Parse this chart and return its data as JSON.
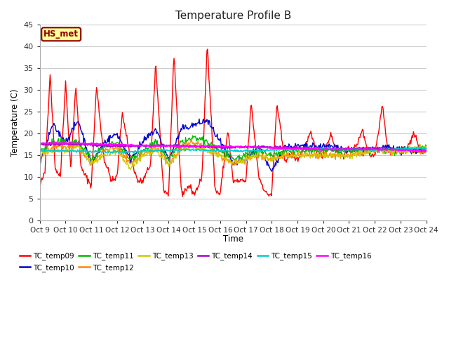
{
  "title": "Temperature Profile B",
  "xlabel": "Time",
  "ylabel": "Temperature (C)",
  "ylim": [
    0,
    45
  ],
  "xlim": [
    0,
    15
  ],
  "fig_bg": "#ffffff",
  "plot_bg": "#ffffff",
  "grid_color": "#dddddd",
  "annotation_text": "HS_met",
  "annotation_bg": "#ffff99",
  "annotation_border": "#8b0000",
  "xtick_labels": [
    "Oct 9",
    "Oct 10",
    "Oct 11",
    "Oct 12",
    "Oct 13",
    "Oct 14",
    "Oct 15",
    "Oct 16",
    "Oct 17",
    "Oct 18",
    "Oct 19",
    "Oct 20",
    "Oct 21",
    "Oct 22",
    "Oct 23",
    "Oct 24"
  ],
  "series_colors": {
    "TC_temp09": "#ff0000",
    "TC_temp10": "#0000cc",
    "TC_temp11": "#00bb00",
    "TC_temp12": "#ff8800",
    "TC_temp13": "#cccc00",
    "TC_temp14": "#aa00cc",
    "TC_temp15": "#00cccc",
    "TC_temp16": "#ff00ff"
  },
  "legend_order": [
    "TC_temp09",
    "TC_temp10",
    "TC_temp11",
    "TC_temp12",
    "TC_temp13",
    "TC_temp14",
    "TC_temp15",
    "TC_temp16"
  ]
}
